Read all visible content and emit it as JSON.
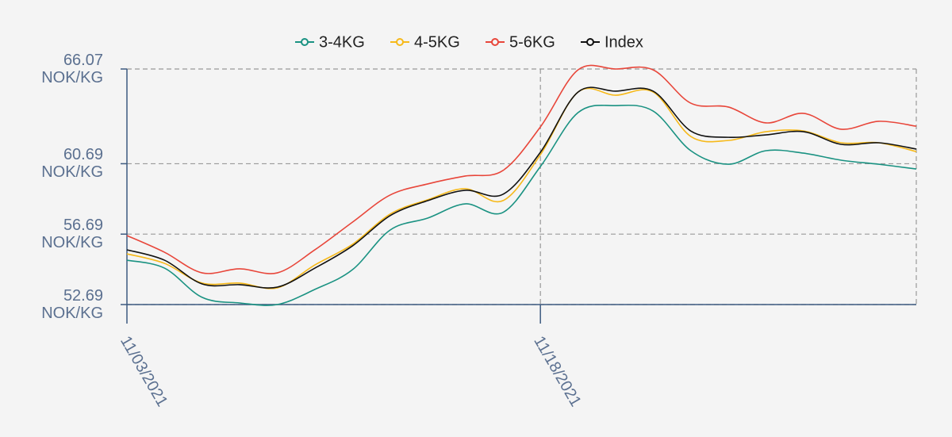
{
  "chart_data": {
    "type": "line",
    "categories": [
      "11/03/2021",
      null,
      null,
      null,
      null,
      null,
      null,
      null,
      null,
      null,
      null,
      "11/18/2021",
      null,
      null,
      null,
      null,
      null,
      null,
      null,
      null,
      null,
      null
    ],
    "series": [
      {
        "name": "3-4KG",
        "color": "#1a9282",
        "values": [
          55.21,
          54.76,
          53.1,
          52.78,
          52.69,
          53.55,
          54.67,
          56.92,
          57.6,
          58.41,
          57.92,
          60.53,
          63.59,
          63.99,
          63.68,
          61.43,
          60.66,
          61.43,
          61.29,
          60.89,
          60.66,
          60.39
        ]
      },
      {
        "name": "4-5KG",
        "color": "#f6b91a",
        "values": [
          55.57,
          55.03,
          53.91,
          53.91,
          53.64,
          54.94,
          56.11,
          57.83,
          58.64,
          59.27,
          58.59,
          61.2,
          64.76,
          64.58,
          64.76,
          62.24,
          62.01,
          62.51,
          62.55,
          61.88,
          61.88,
          61.38
        ]
      },
      {
        "name": "5-6KG",
        "color": "#e8463a",
        "values": [
          56.61,
          55.66,
          54.49,
          54.72,
          54.49,
          55.8,
          57.37,
          58.91,
          59.54,
          59.99,
          60.3,
          62.78,
          66.02,
          66.07,
          66.02,
          64.13,
          63.91,
          63.01,
          63.55,
          62.65,
          63.1,
          62.82
        ]
      },
      {
        "name": "Index",
        "color": "#111111",
        "values": [
          55.8,
          55.21,
          53.86,
          53.82,
          53.68,
          54.76,
          56.02,
          57.74,
          58.59,
          59.18,
          58.95,
          61.34,
          64.76,
          64.81,
          64.81,
          62.55,
          62.19,
          62.33,
          62.51,
          61.79,
          61.88,
          61.52
        ]
      }
    ],
    "ylim": [
      52.69,
      66.07
    ],
    "yticks": [
      {
        "value": 52.69,
        "label": "52.69 NOK/KG"
      },
      {
        "value": 56.69,
        "label": "56.69 NOK/KG"
      },
      {
        "value": 60.69,
        "label": "60.69 NOK/KG"
      },
      {
        "value": 66.07,
        "label": "66.07 NOK/KG"
      }
    ],
    "grid": true,
    "legend": "top"
  }
}
